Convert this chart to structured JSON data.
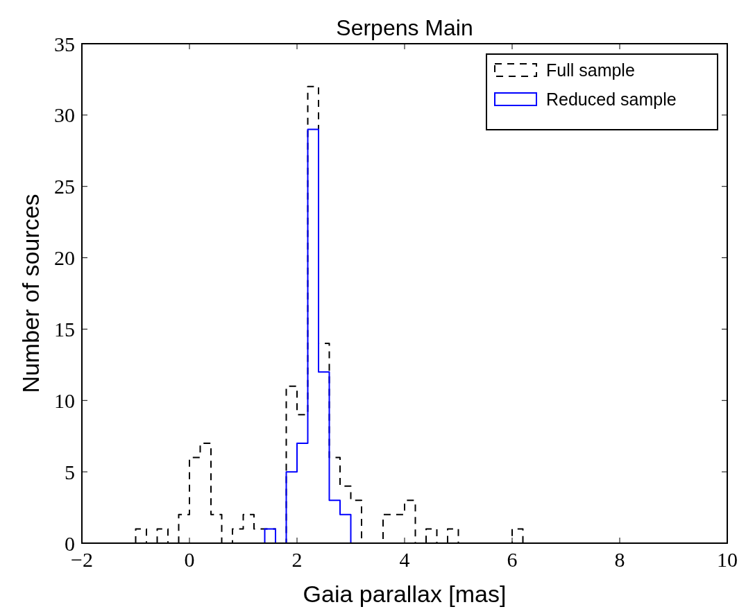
{
  "chart_data": {
    "type": "histogram",
    "title": "Serpens Main",
    "xlabel": "Gaia parallax [mas]",
    "ylabel": "Number of sources",
    "bins": [
      -1.0,
      -0.8,
      -0.6,
      -0.4,
      -0.2,
      0.0,
      0.2,
      0.4,
      0.6,
      0.8,
      1.0,
      1.2,
      1.4,
      1.6,
      1.8,
      2.0,
      2.2,
      2.4,
      2.6,
      2.8,
      3.0,
      3.2,
      3.4,
      3.6,
      3.8,
      4.0,
      4.2,
      4.4,
      4.6,
      4.8,
      5.0,
      5.2,
      5.4,
      5.6,
      5.8,
      6.0,
      6.2,
      6.4,
      6.6,
      6.8,
      7.0,
      7.2,
      7.4,
      7.6,
      7.8,
      8.0,
      8.2,
      8.4,
      8.6
    ],
    "series": [
      {
        "name": "Full sample",
        "color": "#000000",
        "line_style": "dashed",
        "values": [
          1,
          0,
          1,
          0,
          2,
          6,
          7,
          2,
          0,
          1,
          2,
          1,
          1,
          0,
          11,
          9,
          32,
          14,
          6,
          4,
          3,
          0,
          0,
          2,
          2,
          3,
          0,
          1,
          0,
          1,
          0,
          0,
          0,
          0,
          0,
          1,
          0,
          0,
          0,
          0,
          0,
          0,
          0,
          0,
          0,
          0,
          0,
          0
        ]
      },
      {
        "name": "Reduced sample",
        "color": "#0000ff",
        "line_style": "solid",
        "values": [
          0,
          0,
          0,
          0,
          0,
          0,
          0,
          0,
          0,
          0,
          0,
          0,
          1,
          0,
          5,
          7,
          29,
          12,
          3,
          2,
          0,
          0,
          0,
          0,
          0,
          0,
          0,
          0,
          0,
          0,
          0,
          0,
          0,
          0,
          0,
          0,
          0,
          0,
          0,
          0,
          0,
          0,
          0,
          0,
          0,
          0,
          0,
          0
        ]
      }
    ],
    "xlim": [
      -2,
      10
    ],
    "xticks": [
      {
        "value": -2,
        "label": "−2"
      },
      0,
      2,
      4,
      6,
      8,
      10
    ],
    "ylim": [
      0,
      35
    ],
    "yticks": [
      0,
      5,
      10,
      15,
      20,
      25,
      30,
      35
    ],
    "grid": false,
    "legend": "top right"
  }
}
